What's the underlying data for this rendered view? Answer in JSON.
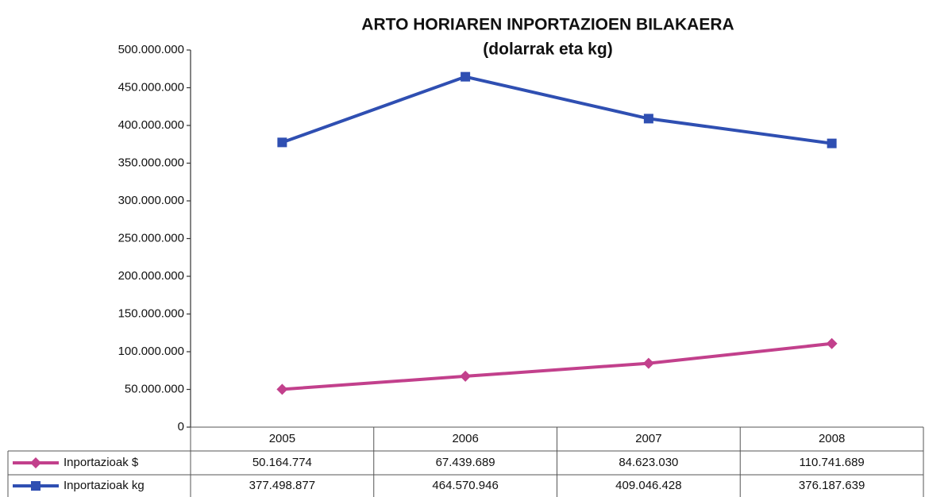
{
  "chart_data": {
    "type": "line",
    "title": "ARTO HORIAREN INPORTAZIOEN BILAKAERA",
    "subtitle": "(dolarrak eta kg)",
    "categories": [
      "2005",
      "2006",
      "2007",
      "2008"
    ],
    "series": [
      {
        "name": "Inportazioak $",
        "color": "#c2408c",
        "marker": "diamond",
        "values": [
          50164774,
          67439689,
          84623030,
          110741689
        ],
        "value_labels": [
          "50.164.774",
          "67.439.689",
          "84.623.030",
          "110.741.689"
        ]
      },
      {
        "name": "Inportazioak kg",
        "color": "#2f4fb2",
        "marker": "square",
        "values": [
          377498877,
          464570946,
          409046428,
          376187639
        ],
        "value_labels": [
          "377.498.877",
          "464.570.946",
          "409.046.428",
          "376.187.639"
        ]
      }
    ],
    "ylim": [
      0,
      500000000
    ],
    "yticks": [
      0,
      {
        "value": 50000000,
        "label": "50.000.000"
      },
      {
        "value": 100000000,
        "label": "100.000.000"
      },
      {
        "value": 150000000,
        "label": "150.000.000"
      },
      {
        "value": 200000000,
        "label": "200.000.000"
      },
      {
        "value": 250000000,
        "label": "250.000.000"
      },
      {
        "value": 300000000,
        "label": "300.000.000"
      },
      {
        "value": 350000000,
        "label": "350.000.000"
      },
      {
        "value": 400000000,
        "label": "400.000.000"
      },
      {
        "value": 450000000,
        "label": "450.000.000"
      },
      {
        "value": 500000000,
        "label": "500.000.000"
      }
    ],
    "grid": false,
    "data_table": true
  }
}
